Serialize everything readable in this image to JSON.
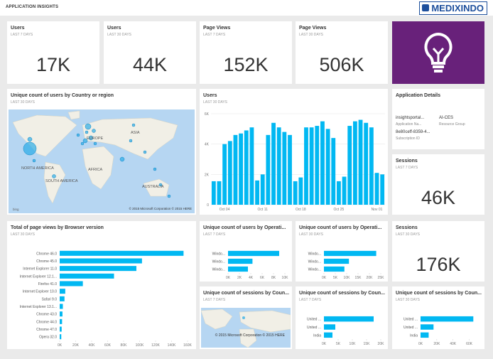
{
  "header": {
    "title": "APPLICATION INSIGHTS",
    "logo": "MEDIXINDO"
  },
  "tiles": [
    {
      "title": "Users",
      "subtitle": "LAST 7 DAYS",
      "value": "17K"
    },
    {
      "title": "Users",
      "subtitle": "LAST 30 DAYS",
      "value": "44K"
    },
    {
      "title": "Page Views",
      "subtitle": "LAST 7 DAYS",
      "value": "152K"
    },
    {
      "title": "Page Views",
      "subtitle": "LAST 30 DAYS",
      "value": "506K"
    },
    {
      "title": "Sessions",
      "subtitle": "LAST 7 DAYS",
      "value": "46K"
    },
    {
      "title": "Sessions",
      "subtitle": "LAST 30 DAYS",
      "value": "176K"
    }
  ],
  "app_details": {
    "title": "Application Details",
    "fields": [
      {
        "value": "insightsportal...",
        "label": "Application Na..."
      },
      {
        "value": "AI-CES",
        "label": "Resource Group"
      },
      {
        "value": "8e80ceff-8359-4...",
        "label": "Subscription ID"
      }
    ]
  },
  "maps": [
    {
      "title": "Unique count of users by Country or region",
      "subtitle": "LAST 30 DAYS",
      "labels": [
        "NORTH AMERICA",
        "EUROPE",
        "ASIA",
        "AFRICA",
        "SOUTH AMERICA",
        "AUSTRALIA"
      ],
      "credit": "© 2015 Microsoft Corporation  © 2015 HERE",
      "brand": "bing"
    },
    {
      "title": "Unique count of sessions by Coun...",
      "subtitle": "LAST 7 DAYS",
      "credit": "© 2015 Microsoft Corporation © 2015 HERE"
    }
  ],
  "chart_data": [
    {
      "type": "bar",
      "title": "Users",
      "subtitle": "LAST 30 DAYS",
      "color": "#01b8f2",
      "grid": true,
      "categories": [
        null,
        null,
        "Oct 04",
        null,
        null,
        null,
        null,
        null,
        null,
        "Oct 11",
        null,
        null,
        null,
        null,
        null,
        null,
        "Oct 18",
        null,
        null,
        null,
        null,
        null,
        null,
        "Oct 25",
        null,
        null,
        null,
        null,
        null,
        null,
        "Nov 01",
        null
      ],
      "values": [
        1550,
        1550,
        4000,
        4200,
        4600,
        4700,
        4900,
        5100,
        1600,
        2000,
        4600,
        5400,
        5100,
        4800,
        4600,
        1550,
        1800,
        5100,
        5100,
        5200,
        5500,
        5000,
        4400,
        1550,
        1850,
        5200,
        5500,
        5600,
        5400,
        5100,
        2100,
        2000
      ],
      "ylim": [
        0,
        6000
      ],
      "yticks": [
        0,
        {
          "value": 2000,
          "label": "2K"
        },
        {
          "value": 4000,
          "label": "4K"
        },
        {
          "value": 6000,
          "label": "6K"
        }
      ]
    },
    {
      "type": "barh",
      "title": "Total of page views by Browser version",
      "subtitle": "LAST 30 DAYS",
      "color": "#01b8f2",
      "categories": [
        "Chrome 46.0",
        "Chrome 45.0",
        "Internet Explorer 11.0",
        "Internet Explorer 12.1...",
        "Firefox 41.0",
        "Internet Explorer 10.0",
        "Safari 9.0",
        "Internet Explorer 13.1...",
        "Chrome 43.0",
        "Chrome 44.0",
        "Chrome 47.0",
        "Opera 32.0"
      ],
      "values": [
        155000,
        103000,
        96000,
        68000,
        29000,
        7000,
        6000,
        4000,
        3500,
        3000,
        2500,
        2000
      ],
      "xlim": [
        0,
        160000
      ],
      "xticks": [
        {
          "value": 0,
          "label": "0K"
        },
        {
          "value": 20000,
          "label": "20K"
        },
        {
          "value": 40000,
          "label": "40K"
        },
        {
          "value": 60000,
          "label": "60K"
        },
        {
          "value": 80000,
          "label": "80K"
        },
        {
          "value": 100000,
          "label": "100K"
        },
        {
          "value": 120000,
          "label": "120K"
        },
        {
          "value": 140000,
          "label": "140K"
        },
        {
          "value": 160000,
          "label": "160K"
        }
      ]
    },
    {
      "type": "barh",
      "title": "Unique count of users by Operati...",
      "subtitle": "LAST 7 DAYS",
      "color": "#01b8f2",
      "categories": [
        "Windo...",
        "Windo...",
        "Windo..."
      ],
      "values": [
        9000,
        4300,
        3500
      ],
      "xlim": [
        0,
        10000
      ],
      "xticks": [
        {
          "value": 0,
          "label": "0K"
        },
        {
          "value": 2000,
          "label": "2K"
        },
        {
          "value": 4000,
          "label": "4K"
        },
        {
          "value": 6000,
          "label": "6K"
        },
        {
          "value": 8000,
          "label": "8K"
        },
        {
          "value": 10000,
          "label": "10K"
        }
      ]
    },
    {
      "type": "barh",
      "title": "Unique count of users by Operati...",
      "subtitle": "LAST 30 DAYS",
      "color": "#01b8f2",
      "categories": [
        "Windo...",
        "Windo...",
        "Windo..."
      ],
      "values": [
        23000,
        11000,
        9000
      ],
      "xlim": [
        0,
        25000
      ],
      "xticks": [
        {
          "value": 0,
          "label": "0K"
        },
        {
          "value": 5000,
          "label": "5K"
        },
        {
          "value": 10000,
          "label": "10K"
        },
        {
          "value": 15000,
          "label": "15K"
        },
        {
          "value": 20000,
          "label": "20K"
        },
        {
          "value": 25000,
          "label": "25K"
        }
      ]
    },
    {
      "type": "barh",
      "title": "Unique count of sessions by Coun...",
      "subtitle": "LAST 7 DAYS",
      "color": "#01b8f2",
      "categories": [
        "United ...",
        "United ...",
        "India"
      ],
      "values": [
        17500,
        4000,
        3000
      ],
      "xlim": [
        0,
        20000
      ],
      "xticks": [
        {
          "value": 0,
          "label": "0K"
        },
        {
          "value": 5000,
          "label": "5K"
        },
        {
          "value": 10000,
          "label": "10K"
        },
        {
          "value": 15000,
          "label": "15K"
        },
        {
          "value": 20000,
          "label": "20K"
        }
      ]
    },
    {
      "type": "barh",
      "title": "Unique count of sessions by Coun...",
      "subtitle": "LAST 30 DAYS",
      "color": "#01b8f2",
      "categories": [
        "United ...",
        "United ...",
        "India"
      ],
      "values": [
        65000,
        16000,
        10000
      ],
      "xlim": [
        0,
        70000
      ],
      "xticks": [
        {
          "value": 0,
          "label": "0K"
        },
        {
          "value": 20000,
          "label": "20K"
        },
        {
          "value": 40000,
          "label": "40K"
        },
        {
          "value": 60000,
          "label": "60K"
        }
      ]
    }
  ]
}
